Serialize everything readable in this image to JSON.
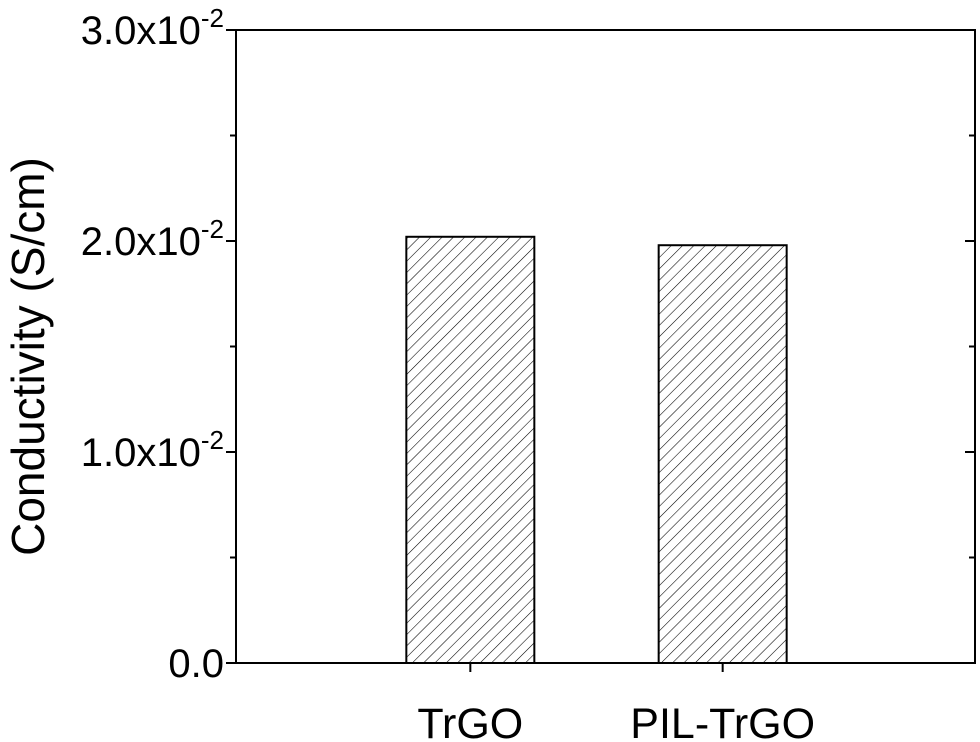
{
  "chart_data": {
    "type": "bar",
    "categories": [
      "TrGO",
      "PIL-TrGO"
    ],
    "values": [
      0.0202,
      0.0198
    ],
    "xlabel": "",
    "ylabel": "Conductivity (S/cm)",
    "ylim": [
      0,
      0.03
    ],
    "yticks": [
      {
        "value": 0.0,
        "mantissa": "0.0",
        "exponent": ""
      },
      {
        "value": 0.01,
        "mantissa": "1.0x10",
        "exponent": "-2"
      },
      {
        "value": 0.02,
        "mantissa": "2.0x10",
        "exponent": "-2"
      },
      {
        "value": 0.03,
        "mantissa": "3.0x10",
        "exponent": "-2"
      }
    ],
    "bar_fill": "hatched",
    "grid": false,
    "legend": "none",
    "colors": {
      "bar_stroke": "#000000",
      "hatch": "#000000",
      "background": "#ffffff"
    }
  }
}
